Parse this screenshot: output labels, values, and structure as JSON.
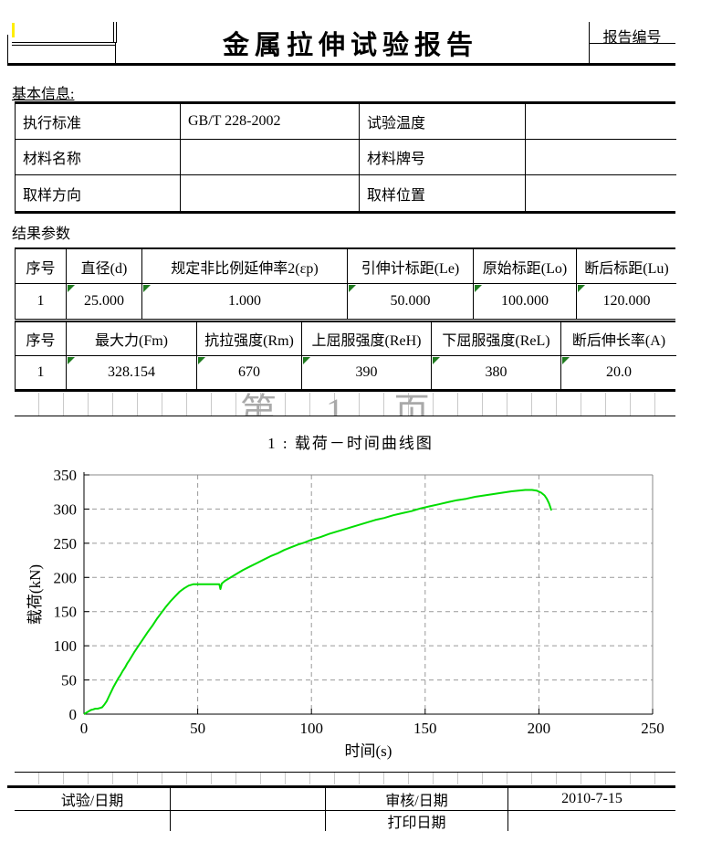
{
  "header": {
    "title": "金属拉伸试验报告",
    "report_no_label": "报告编号"
  },
  "sections": {
    "basic_info_label": "基本信息:",
    "results_label": "结果参数"
  },
  "basic_info": {
    "rows": [
      {
        "label1": "执行标准",
        "value1": "GB/T 228-2002",
        "label2": "试验温度",
        "value2": ""
      },
      {
        "label1": "材料名称",
        "value1": "",
        "label2": "材料牌号",
        "value2": ""
      },
      {
        "label1": "取样方向",
        "value1": "",
        "label2": "取样位置",
        "value2": ""
      }
    ]
  },
  "results": {
    "table1": {
      "headers": [
        "序号",
        "直径(d)",
        "规定非比例延伸率2(εp)",
        "引伸计标距(Le)",
        "原始标距(Lo)",
        "断后标距(Lu)"
      ],
      "row": [
        "1",
        "25.000",
        "1.000",
        "50.000",
        "100.000",
        "120.000"
      ]
    },
    "table2": {
      "headers": [
        "序号",
        "最大力(Fm)",
        "抗拉强度(Rm)",
        "上屈服强度(ReH)",
        "下屈服强度(ReL)",
        "断后伸长率(A)"
      ],
      "row": [
        "1",
        "328.154",
        "670",
        "390",
        "380",
        "20.0"
      ]
    }
  },
  "watermark": {
    "page_text": "第 1 页"
  },
  "chart_data": {
    "type": "line",
    "title": "1 : 载荷－时间曲线图",
    "xlabel": "时间(s)",
    "ylabel": "载荷(kN)",
    "xlim": [
      0,
      250
    ],
    "ylim": [
      0,
      350
    ],
    "xticks": [
      0,
      50,
      100,
      150,
      200,
      250
    ],
    "yticks": [
      0,
      50,
      100,
      150,
      200,
      250,
      300,
      350
    ],
    "grid": true,
    "legend": "none",
    "line_color": "#00dd00",
    "series": [
      {
        "name": "载荷-时间",
        "points": [
          [
            0,
            0
          ],
          [
            1,
            2
          ],
          [
            2,
            4
          ],
          [
            3,
            6
          ],
          [
            4,
            7
          ],
          [
            5,
            8
          ],
          [
            6,
            8
          ],
          [
            7,
            9
          ],
          [
            8,
            10
          ],
          [
            9,
            14
          ],
          [
            10,
            19
          ],
          [
            11,
            26
          ],
          [
            12,
            33
          ],
          [
            13,
            40
          ],
          [
            14,
            46
          ],
          [
            15,
            52
          ],
          [
            16,
            57
          ],
          [
            17,
            63
          ],
          [
            18,
            68
          ],
          [
            19,
            74
          ],
          [
            20,
            79
          ],
          [
            22,
            90
          ],
          [
            24,
            100
          ],
          [
            26,
            110
          ],
          [
            28,
            120
          ],
          [
            30,
            129
          ],
          [
            32,
            139
          ],
          [
            34,
            148
          ],
          [
            36,
            157
          ],
          [
            38,
            165
          ],
          [
            40,
            172
          ],
          [
            42,
            179
          ],
          [
            44,
            184
          ],
          [
            46,
            188
          ],
          [
            48,
            190
          ],
          [
            52,
            190
          ],
          [
            56,
            190
          ],
          [
            58,
            190
          ],
          [
            59.5,
            190
          ],
          [
            60,
            183
          ],
          [
            60.6,
            191
          ],
          [
            62,
            195
          ],
          [
            64,
            199
          ],
          [
            66,
            203
          ],
          [
            68,
            207
          ],
          [
            70,
            211
          ],
          [
            73,
            216
          ],
          [
            76,
            221
          ],
          [
            79,
            226
          ],
          [
            82,
            231
          ],
          [
            85,
            235
          ],
          [
            88,
            240
          ],
          [
            91,
            244
          ],
          [
            94,
            248
          ],
          [
            97,
            251
          ],
          [
            100,
            255
          ],
          [
            104,
            259
          ],
          [
            108,
            264
          ],
          [
            112,
            268
          ],
          [
            116,
            272
          ],
          [
            120,
            276
          ],
          [
            124,
            280
          ],
          [
            128,
            284
          ],
          [
            132,
            287
          ],
          [
            136,
            291
          ],
          [
            140,
            294
          ],
          [
            144,
            297
          ],
          [
            148,
            301
          ],
          [
            152,
            304
          ],
          [
            156,
            307
          ],
          [
            160,
            310
          ],
          [
            164,
            313
          ],
          [
            168,
            315
          ],
          [
            172,
            318
          ],
          [
            176,
            320
          ],
          [
            180,
            322
          ],
          [
            184,
            324
          ],
          [
            188,
            326
          ],
          [
            191,
            327
          ],
          [
            194,
            328
          ],
          [
            197,
            328
          ],
          [
            199,
            327
          ],
          [
            201,
            324
          ],
          [
            202.5,
            320
          ],
          [
            203.5,
            315
          ],
          [
            204.5,
            308
          ],
          [
            205.5,
            298
          ]
        ]
      }
    ]
  },
  "footer": {
    "test_date_label": "试验/日期",
    "review_date_label": "审核/日期",
    "review_date_value": "2010-7-15",
    "print_date_label": "打印日期"
  }
}
